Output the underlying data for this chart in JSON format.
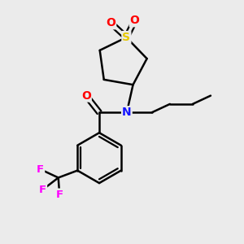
{
  "background_color": "#ebebeb",
  "atom_colors": {
    "C": "#000000",
    "N": "#1414FF",
    "O": "#FF0000",
    "S": "#E6C800",
    "F": "#FF00FF"
  },
  "bond_color": "#000000",
  "bond_width": 1.8,
  "figsize": [
    3.0,
    3.0
  ],
  "dpi": 100
}
